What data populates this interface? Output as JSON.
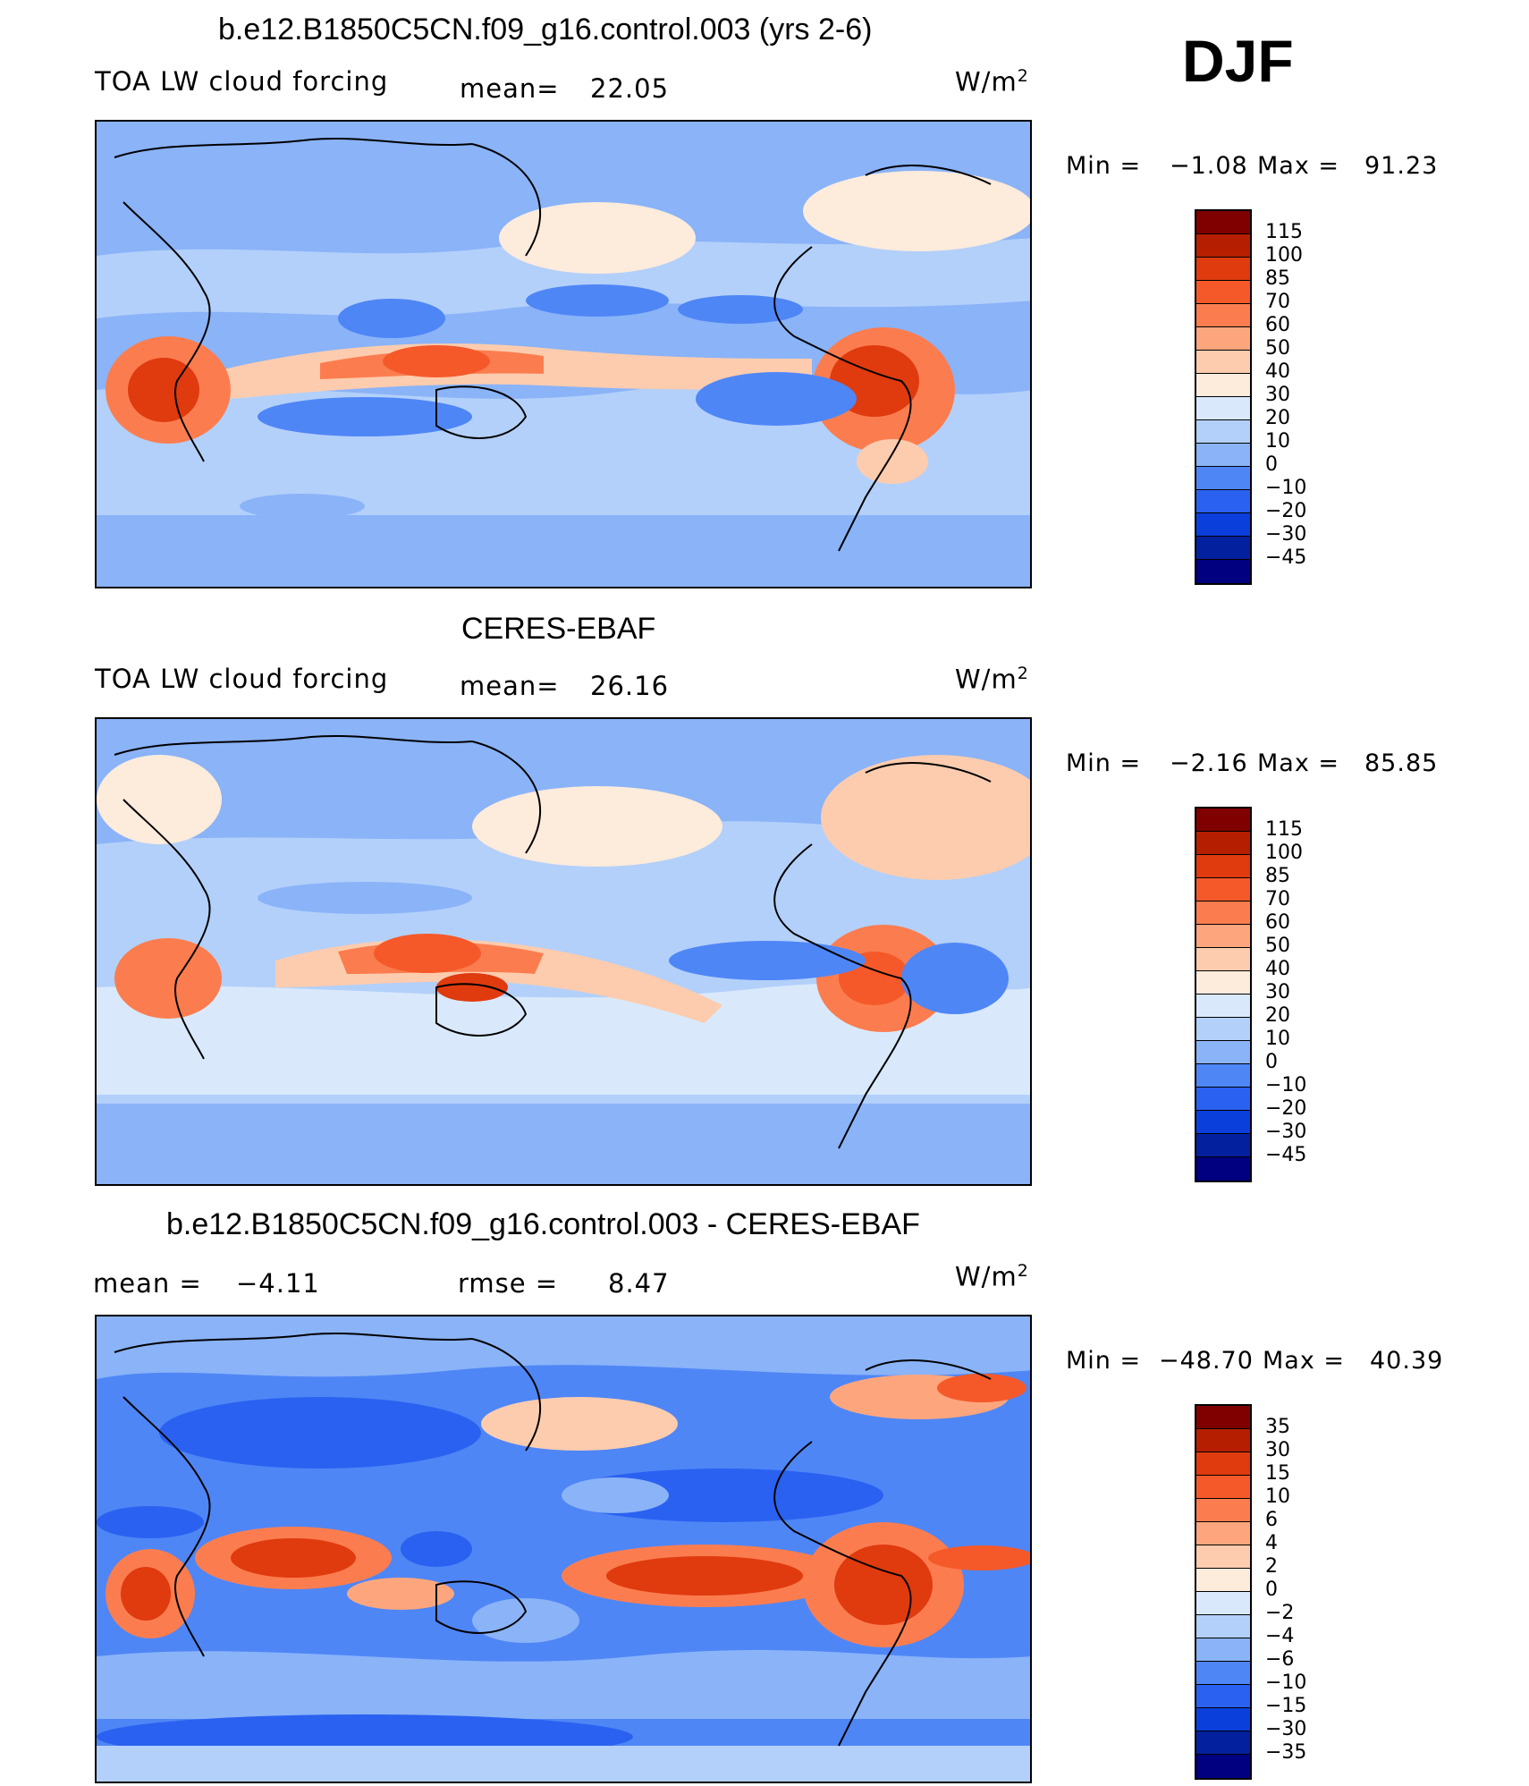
{
  "season": "DJF",
  "units_base": "W/m",
  "units_exp": "2",
  "panels": [
    {
      "title": "b.e12.B1850C5CN.f09_g16.control.003 (yrs 2-6)",
      "left_label": "TOA LW cloud forcing",
      "mid_label": "mean=",
      "mid_value": "22.05",
      "min_label": "Min =",
      "min_value": "−1.08",
      "max_label": "Max =",
      "max_value": "91.23",
      "colorbar_levels": [
        "115",
        "100",
        "85",
        "70",
        "60",
        "50",
        "40",
        "30",
        "20",
        "10",
        "0",
        "−10",
        "−20",
        "−30",
        "−45"
      ],
      "colorbar_colors": [
        "#800000",
        "#b51f00",
        "#e03a0f",
        "#f5592a",
        "#fb7d4f",
        "#fda67e",
        "#fdccae",
        "#fdebdc",
        "#d9e9fb",
        "#b3d0fa",
        "#8ab3f8",
        "#4f86f6",
        "#2a61f0",
        "#0b3fdc",
        "#03209e",
        "#000080"
      ]
    },
    {
      "title": "CERES-EBAF",
      "left_label": "TOA LW cloud forcing",
      "mid_label": "mean=",
      "mid_value": "26.16",
      "min_label": "Min =",
      "min_value": "−2.16",
      "max_label": "Max =",
      "max_value": "85.85",
      "colorbar_levels": [
        "115",
        "100",
        "85",
        "70",
        "60",
        "50",
        "40",
        "30",
        "20",
        "10",
        "0",
        "−10",
        "−20",
        "−30",
        "−45"
      ],
      "colorbar_colors": [
        "#800000",
        "#b51f00",
        "#e03a0f",
        "#f5592a",
        "#fb7d4f",
        "#fda67e",
        "#fdccae",
        "#fdebdc",
        "#d9e9fb",
        "#b3d0fa",
        "#8ab3f8",
        "#4f86f6",
        "#2a61f0",
        "#0b3fdc",
        "#03209e",
        "#000080"
      ]
    },
    {
      "title": "b.e12.B1850C5CN.f09_g16.control.003 - CERES-EBAF",
      "left_label": "mean =",
      "left_value": "−4.11",
      "mid_label": "rmse =",
      "mid_value": "8.47",
      "min_label": "Min =",
      "min_value": "−48.70",
      "max_label": "Max =",
      "max_value": "40.39",
      "colorbar_levels": [
        "35",
        "30",
        "15",
        "10",
        "6",
        "4",
        "2",
        "0",
        "−2",
        "−4",
        "−6",
        "−10",
        "−15",
        "−30",
        "−35"
      ],
      "colorbar_colors": [
        "#800000",
        "#b51f00",
        "#e03a0f",
        "#f5592a",
        "#fb7d4f",
        "#fda67e",
        "#fdccae",
        "#fdebdc",
        "#d9e9fb",
        "#b3d0fa",
        "#8ab3f8",
        "#4f86f6",
        "#2a61f0",
        "#0b3fdc",
        "#03209e",
        "#000080"
      ]
    }
  ]
}
